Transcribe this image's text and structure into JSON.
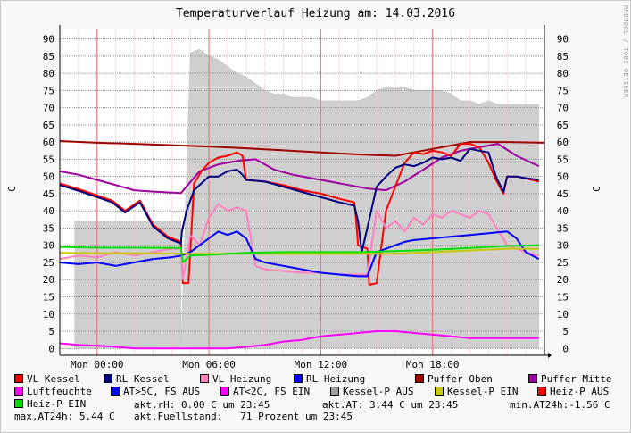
{
  "chart_data": {
    "type": "line",
    "title": "Temperaturverlauf Heizung am: 14.03.2016",
    "ylabel": "C",
    "ylim": [
      -2,
      93
    ],
    "xlim": [
      -2,
      24
    ],
    "grid": true,
    "y_ticks": [
      "0",
      "5",
      "10",
      "15",
      "20",
      "25",
      "30",
      "35",
      "40",
      "45",
      "50",
      "55",
      "60",
      "65",
      "70",
      "75",
      "80",
      "85",
      "90"
    ],
    "x_ticks": [
      {
        "label": "Mon 00:00",
        "value": 0
      },
      {
        "label": "Mon 06:00",
        "value": 6
      },
      {
        "label": "Mon 12:00",
        "value": 12
      },
      {
        "label": "Mon 18:00",
        "value": 18
      }
    ],
    "vendor_text": "RRDTOOL / TOBI OETIKER",
    "area": {
      "name": "Kessel-P AUS",
      "color": "#cfcfcf",
      "x": [
        -2,
        -1.2,
        -1.2,
        4.5,
        4.5,
        5.0,
        5.5,
        6.0,
        6.5,
        7.0,
        7.5,
        8.0,
        8.5,
        9.0,
        9.5,
        10.0,
        10.5,
        11.0,
        11.5,
        12.0,
        12.5,
        13.0,
        13.5,
        14.0,
        14.5,
        15.0,
        15.5,
        16.0,
        16.5,
        17.0,
        17.5,
        18.0,
        18.5,
        19.0,
        19.5,
        20.0,
        20.5,
        21.0,
        21.5,
        22.0,
        22.5,
        23.0,
        23.7
      ],
      "y": [
        0,
        0,
        37,
        37,
        0,
        86,
        87,
        85,
        84,
        82,
        80,
        79,
        77,
        75,
        74,
        74,
        73,
        73,
        73,
        72,
        72,
        72,
        72,
        72,
        73,
        75,
        76,
        76,
        76,
        75,
        75,
        75,
        75,
        74,
        72,
        72,
        71,
        72,
        71,
        71,
        71,
        71,
        71
      ]
    },
    "pink_shade": {
      "name": "Heiz-P EIN",
      "color": "#fbe8e8",
      "x": [
        -1.2,
        4.5
      ],
      "y": 28
    },
    "series": [
      {
        "name": "Puffer Oben",
        "color": "#a00000",
        "width": 2,
        "x": [
          -2,
          0,
          2,
          4,
          6,
          8,
          10,
          12,
          14,
          16,
          18,
          20,
          22,
          24
        ],
        "y": [
          60.3,
          59.8,
          59.5,
          59.1,
          58.7,
          58.2,
          57.6,
          57.0,
          56.4,
          56.0,
          58.0,
          60.0,
          60.0,
          59.8
        ]
      },
      {
        "name": "Puffer Mitte",
        "color": "#a000a0",
        "width": 2,
        "x": [
          -2,
          -1,
          0,
          1,
          2,
          3,
          4.5,
          5.5,
          6.5,
          7.5,
          8.5,
          9.5,
          10.5,
          11.5,
          12.5,
          13.5,
          14.5,
          15.5,
          16.5,
          17.5,
          18.5,
          19.5,
          20.5,
          21.5,
          22.5,
          23.7
        ],
        "y": [
          51.5,
          50.5,
          49,
          47.5,
          46,
          45.6,
          45.2,
          51.5,
          53.5,
          54.5,
          55.0,
          52.0,
          50.5,
          49.5,
          48.5,
          47.5,
          46.5,
          46.0,
          48.5,
          52.0,
          55.5,
          57.5,
          58.5,
          59.5,
          56.0,
          53.0
        ]
      },
      {
        "name": "VL Kessel",
        "color": "#ff0000",
        "width": 2,
        "x": [
          -2,
          -0.8,
          0,
          0.8,
          1.5,
          2.3,
          3.0,
          3.8,
          4.5,
          4.6,
          4.9,
          5.0,
          5.2,
          5.6,
          6.0,
          6.5,
          7.0,
          7.5,
          7.8,
          8.0,
          9.0,
          10.0,
          11.0,
          12.0,
          13.0,
          13.8,
          13.9,
          14.0,
          14.5,
          14.6,
          15.0,
          15.5,
          16.0,
          16.5,
          17.0,
          17.5,
          18.0,
          18.5,
          19.0,
          19.5,
          20.0,
          20.5,
          21.0,
          21.4,
          21.8,
          22.0,
          22.5,
          23.0,
          23.7
        ],
        "y": [
          48,
          46,
          44.5,
          43,
          40,
          43,
          36,
          32.5,
          31,
          19,
          19,
          28,
          48,
          51.5,
          54,
          55.5,
          56,
          57,
          56,
          49,
          48.5,
          47.5,
          46.0,
          45.0,
          43.5,
          42.5,
          37,
          30,
          29,
          18.5,
          19,
          40,
          47,
          54,
          57,
          56.5,
          57.5,
          57,
          56,
          59.5,
          59.5,
          58.5,
          54,
          49,
          45,
          50,
          50,
          49.5,
          48.5
        ]
      },
      {
        "name": "RL Kessel",
        "color": "#000080",
        "width": 2,
        "x": [
          -2,
          -0.8,
          0,
          0.8,
          1.5,
          2.3,
          3.0,
          3.8,
          4.5,
          4.55,
          4.8,
          5.2,
          5.6,
          6.0,
          6.5,
          7.0,
          7.5,
          7.8,
          8.0,
          9.0,
          10.0,
          11.0,
          12.0,
          13.0,
          13.8,
          14.0,
          14.2,
          14.5,
          15.0,
          15.5,
          16.0,
          16.5,
          17.0,
          17.5,
          18.0,
          18.5,
          19.0,
          19.5,
          20.0,
          20.5,
          21.0,
          21.4,
          21.8,
          22.0,
          22.5,
          23.0,
          23.7
        ],
        "y": [
          47.5,
          45.5,
          44,
          42.5,
          39.5,
          42.5,
          35.5,
          32,
          30.5,
          34,
          40,
          46,
          48,
          50,
          50,
          51.5,
          52,
          50.5,
          49,
          48.5,
          47,
          45.5,
          44,
          42.5,
          41.5,
          37,
          28,
          35,
          47,
          50,
          52.5,
          53.5,
          53,
          54,
          55.5,
          55,
          55.5,
          54.5,
          58,
          57.5,
          57,
          50,
          45.5,
          50,
          50,
          49.5,
          49
        ]
      },
      {
        "name": "VL Heizung",
        "color": "#ff80c0",
        "width": 2,
        "x": [
          -2,
          -1,
          0,
          1,
          2,
          3,
          4,
          4.5,
          4.6,
          5.0,
          5.5,
          6.0,
          6.5,
          7.0,
          7.5,
          8.0,
          8.5,
          9.0,
          10,
          11,
          12,
          13,
          14,
          14.5,
          15.0,
          15.5,
          16.0,
          16.5,
          17.0,
          17.5,
          18.0,
          18.5,
          19.0,
          19.5,
          20.0,
          20.5,
          21.0,
          22.0,
          23.0,
          23.7
        ],
        "y": [
          26,
          27,
          26.5,
          28,
          27,
          28,
          29,
          29,
          20,
          33,
          30,
          38,
          42,
          40,
          41,
          40,
          24,
          23,
          22.5,
          22,
          22,
          21.5,
          21.5,
          21.5,
          40,
          35,
          37,
          34,
          38,
          36,
          39,
          38,
          40,
          39,
          38,
          40,
          39,
          30,
          28,
          27
        ]
      },
      {
        "name": "RL Heizung",
        "color": "#0000ff",
        "width": 2,
        "x": [
          -2,
          -1,
          0,
          1,
          2,
          3,
          4,
          4.5,
          5.0,
          5.5,
          6.0,
          6.5,
          7.0,
          7.5,
          8.0,
          8.5,
          9.0,
          10,
          11,
          12,
          13,
          14,
          14.5,
          15.0,
          15.5,
          16.0,
          16.5,
          17.0,
          18.0,
          19.0,
          20.0,
          21.0,
          22.0,
          22.5,
          23.0,
          23.7
        ],
        "y": [
          25,
          24.5,
          25,
          24,
          25,
          26,
          26.5,
          27,
          28,
          30,
          32,
          34,
          33,
          34,
          32,
          26,
          25,
          24,
          23,
          22,
          21.5,
          21,
          21,
          28,
          29,
          30,
          31,
          31.5,
          32,
          32.5,
          33,
          33.5,
          34,
          32,
          28,
          26
        ]
      },
      {
        "name": "Luftfeuchte",
        "color": "#ff00ff",
        "width": 2,
        "x": [
          -2,
          -1,
          0,
          1,
          2,
          3,
          4,
          5,
          6,
          7,
          8,
          9,
          10,
          11,
          12,
          13,
          14,
          15,
          16,
          17,
          18,
          19,
          20,
          21,
          22,
          23,
          23.7
        ],
        "y": [
          1.5,
          1,
          0.8,
          0.5,
          0,
          0,
          0,
          0,
          0,
          0,
          0.5,
          1,
          2,
          2.5,
          3.5,
          4,
          4.5,
          5,
          5,
          4.5,
          4,
          3.5,
          3,
          3,
          3,
          3,
          3
        ]
      },
      {
        "name": "AT>5C, FS AUS",
        "color": "#0000ff",
        "width": 1,
        "x": [],
        "y": []
      },
      {
        "name": "AT<2C, FS EIN",
        "color": "#ff00ff",
        "width": 1,
        "x": [],
        "y": []
      },
      {
        "name": "Kessel-P EIN",
        "color": "#c8c800",
        "width": 2,
        "x": [
          -2,
          0,
          2,
          4,
          6,
          8,
          10,
          12,
          14,
          16,
          18,
          20,
          22,
          23.7
        ],
        "y": [
          27.8,
          27.7,
          27.7,
          27.6,
          27.5,
          27.5,
          27.5,
          27.5,
          27.5,
          27.5,
          28,
          28.5,
          29,
          29
        ]
      },
      {
        "name": "Heiz-P EIN",
        "color": "#00e000",
        "width": 2,
        "x": [
          -2,
          0,
          2,
          4,
          4.5,
          4.6,
          5,
          6,
          8,
          10,
          12,
          14,
          16,
          18,
          20,
          22,
          23.7
        ],
        "y": [
          29.5,
          29.3,
          29.3,
          29.2,
          29.2,
          25,
          27,
          27.2,
          27.8,
          28.0,
          28.0,
          28.0,
          28.3,
          28.7,
          29.2,
          29.8,
          30
        ]
      }
    ]
  },
  "legend": [
    {
      "label": "VL Kessel",
      "color": "#ff0000"
    },
    {
      "label": "RL Kessel",
      "color": "#000080"
    },
    {
      "label": "VL Heizung",
      "color": "#ff80c0"
    },
    {
      "label": "RL Heizung",
      "color": "#0000ff"
    },
    {
      "label": "Puffer Oben",
      "color": "#a00000"
    },
    {
      "label": "Puffer Mitte",
      "color": "#a000a0"
    },
    {
      "label": "Luftfeuchte",
      "color": "#ff00ff"
    },
    {
      "label": "AT>5C, FS AUS",
      "color": "#0000ff"
    },
    {
      "label": "AT<2C, FS EIN",
      "color": "#ff00ff"
    },
    {
      "label": "Kessel-P AUS",
      "color": "#a0a0a0"
    },
    {
      "label": "Kessel-P EIN",
      "color": "#c8c800"
    },
    {
      "label": "Heiz-P AUS",
      "color": "#ff0000"
    },
    {
      "label": "Heiz-P EIN",
      "color": "#00e000"
    }
  ],
  "info": {
    "rh": "akt.rH: 0.00 C um 23:45",
    "at": "akt.AT: 3.44 C um 23:45",
    "min": "min.AT24h:-1.56 C",
    "max": "max.AT24h: 5.44 C",
    "fuell": "akt.Fuellstand:   71 Prozent um 23:45"
  }
}
